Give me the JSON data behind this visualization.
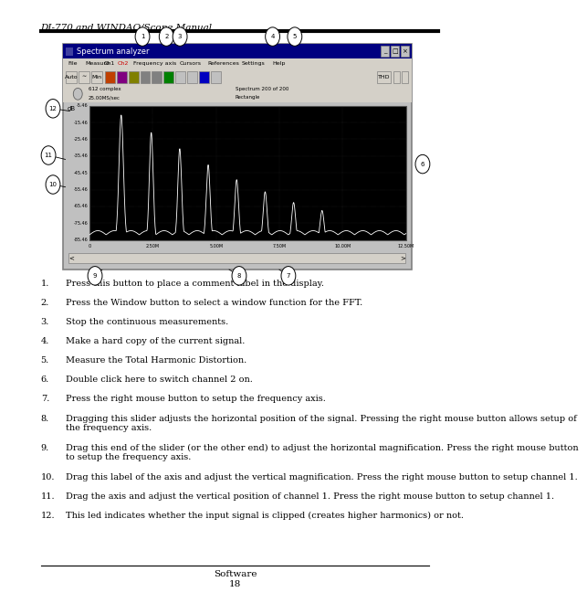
{
  "title_header": "DI-770 and WINDAQ/Scope Manual",
  "page_bg": "#ffffff",
  "screenshot": {
    "title_bar": "Spectrum analyzer",
    "y_labels": [
      "-5.46",
      "-15.46",
      "-25.46",
      "-35.46",
      "-45.45",
      "-55.46",
      "-65.46",
      "-75.46",
      "-85.46"
    ],
    "x_labels": [
      "0",
      "2.50M",
      "5.00M",
      "7.50M",
      "10.00M",
      "12.50M"
    ],
    "info_text1": "612 complex\n25.00MS/sec",
    "info_text2": "Spectrum 200 of 200\nRectangle",
    "db_label": "dB",
    "menu_items": [
      "File",
      "Measure",
      "Ch1",
      "Ch2",
      "Frequency axis",
      "Cursors",
      "References",
      "Settings",
      "Help"
    ]
  },
  "items": [
    {
      "n": 1,
      "text": "Press this button to place a comment label in the display.",
      "lines": 1
    },
    {
      "n": 2,
      "text": "Press the Window button to select a window function for the FFT.",
      "lines": 1
    },
    {
      "n": 3,
      "text": "Stop the continuous measurements.",
      "lines": 1
    },
    {
      "n": 4,
      "text": "Make a hard copy of the current signal.",
      "lines": 1
    },
    {
      "n": 5,
      "text": "Measure the Total Harmonic Distortion.",
      "lines": 1
    },
    {
      "n": 6,
      "text": "Double click here to switch channel 2 on.",
      "lines": 1
    },
    {
      "n": 7,
      "text": "Press the right mouse button to setup the frequency axis.",
      "lines": 1
    },
    {
      "n": 8,
      "text": "Dragging this slider adjusts the horizontal position of the signal. Pressing the right mouse button allows setup of\nthe frequency axis.",
      "lines": 2
    },
    {
      "n": 9,
      "text": "Drag this end of the slider (or the other end) to adjust the horizontal magnification. Press the right mouse button\nto setup the frequency axis.",
      "lines": 2
    },
    {
      "n": 10,
      "text": "Drag this label of the axis and adjust the vertical magnification. Press the right mouse button to setup channel 1.",
      "lines": 1
    },
    {
      "n": 11,
      "text": "Drag the axis and adjust the vertical position of channel 1. Press the right mouse button to setup channel 1.",
      "lines": 1
    },
    {
      "n": 12,
      "text": "This led indicates whether the input signal is clipped (creates higher harmonics) or not.",
      "lines": 1
    }
  ],
  "footer_text": "Software\n18",
  "text_color": "#000000"
}
